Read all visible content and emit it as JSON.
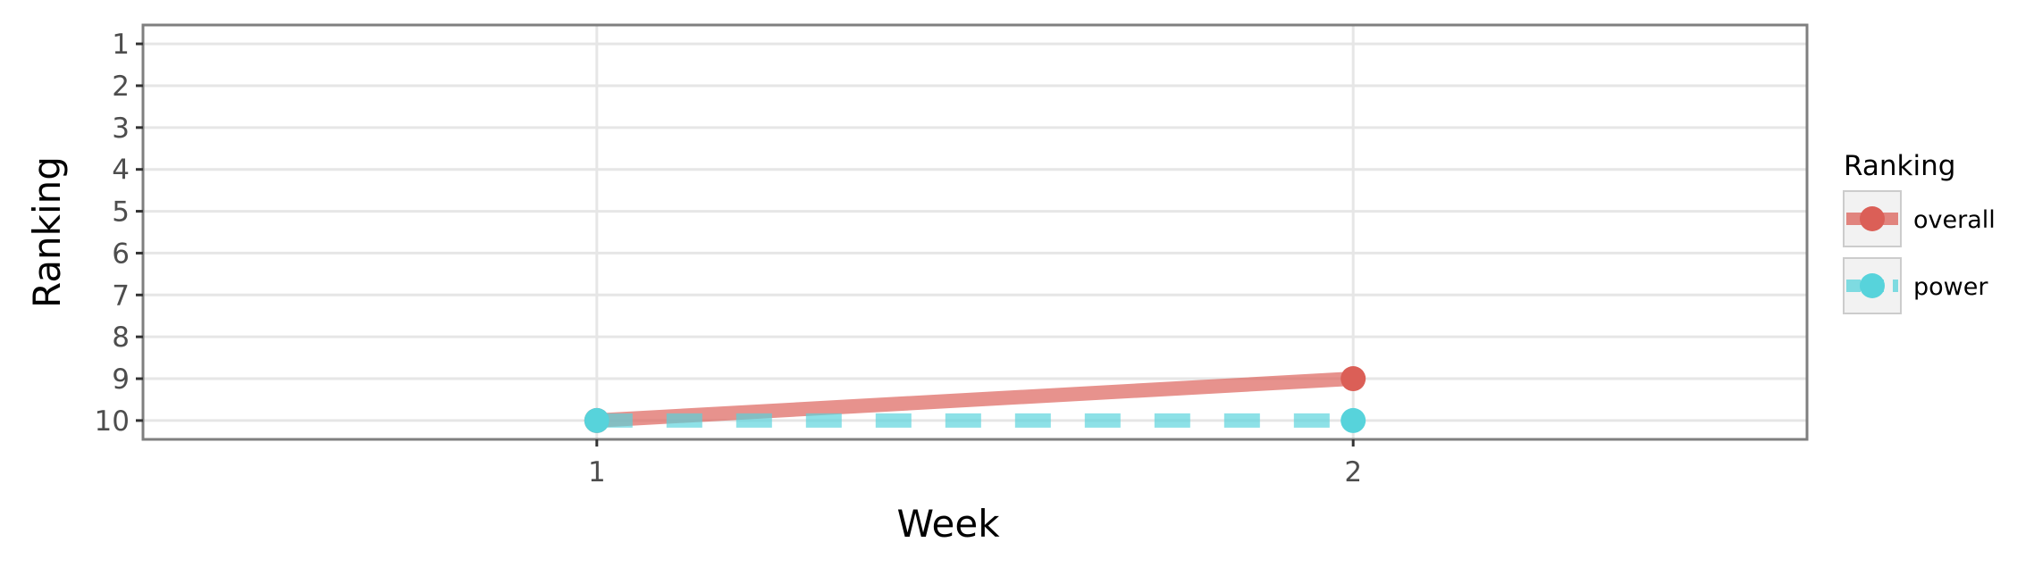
{
  "chart_data": {
    "type": "line",
    "title": "",
    "xlabel": "Week",
    "ylabel": "Ranking",
    "x": [
      1,
      2
    ],
    "xlim": [
      0.4,
      2.6
    ],
    "ylim": [
      0.55,
      10.45
    ],
    "y_reversed": true,
    "x_tick_values": [
      1,
      2
    ],
    "x_tick_labels": [
      "1",
      "2"
    ],
    "y_tick_values": [
      1,
      2,
      3,
      4,
      5,
      6,
      7,
      8,
      9,
      10
    ],
    "y_tick_labels": [
      "1",
      "2",
      "3",
      "4",
      "5",
      "6",
      "7",
      "8",
      "9",
      "10"
    ],
    "grid": true,
    "legend": {
      "title": "Ranking",
      "placement": "right"
    },
    "series": [
      {
        "name": "overall",
        "values": [
          10,
          9
        ],
        "color": "#db5f57",
        "line_style": "solid"
      },
      {
        "name": "power",
        "values": [
          10,
          10
        ],
        "color": "#57d3db",
        "line_style": "dashed"
      }
    ]
  }
}
